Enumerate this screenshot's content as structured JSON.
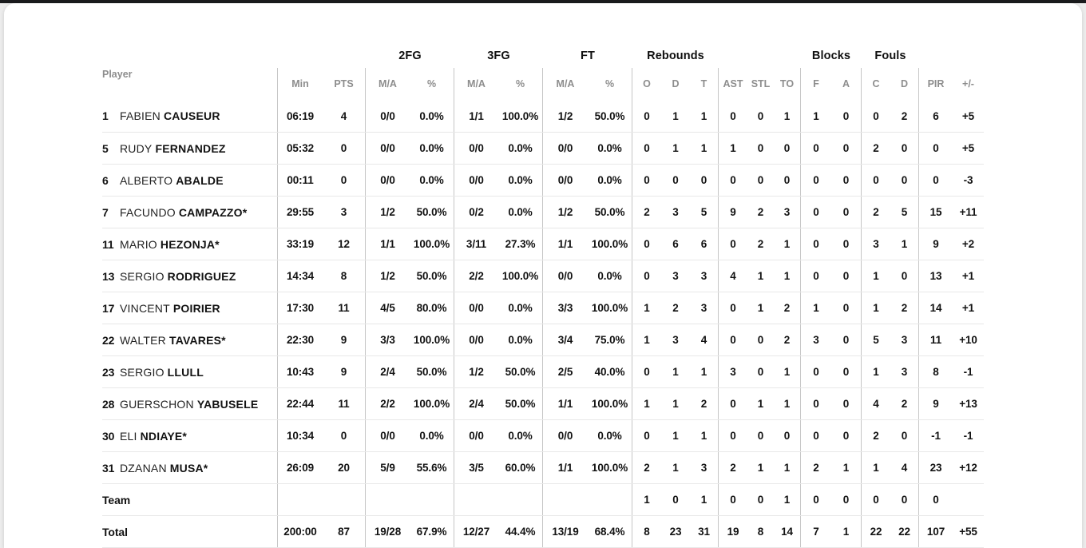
{
  "colors": {
    "page_bg": "#ececec",
    "top_strip": "#1a1b1d",
    "card_bg": "#ffffff",
    "vertical_divider": "#c6c6c6",
    "row_line": "#e8e8e8",
    "header_text": "#8d8d8d",
    "text": "#121212"
  },
  "table": {
    "player_header": "Player",
    "groups": [
      {
        "label": "2FG"
      },
      {
        "label": "3FG"
      },
      {
        "label": "FT"
      },
      {
        "label": "Rebounds"
      },
      {
        "label": "Blocks"
      },
      {
        "label": "Fouls"
      }
    ],
    "columns": [
      "Min",
      "PTS",
      "M/A",
      "%",
      "M/A",
      "%",
      "M/A",
      "%",
      "O",
      "D",
      "T",
      "AST",
      "STL",
      "TO",
      "F",
      "A",
      "C",
      "D",
      "PIR",
      "+/-"
    ],
    "rows": [
      {
        "num": "1",
        "first": "FABIEN",
        "last": "CAUSEUR",
        "cells": [
          "06:19",
          "4",
          "0/0",
          "0.0%",
          "1/1",
          "100.0%",
          "1/2",
          "50.0%",
          "0",
          "1",
          "1",
          "0",
          "0",
          "1",
          "1",
          "0",
          "0",
          "2",
          "6",
          "+5"
        ]
      },
      {
        "num": "5",
        "first": "RUDY",
        "last": "FERNANDEZ",
        "cells": [
          "05:32",
          "0",
          "0/0",
          "0.0%",
          "0/0",
          "0.0%",
          "0/0",
          "0.0%",
          "0",
          "1",
          "1",
          "1",
          "0",
          "0",
          "0",
          "0",
          "2",
          "0",
          "0",
          "+5"
        ]
      },
      {
        "num": "6",
        "first": "ALBERTO",
        "last": "ABALDE",
        "cells": [
          "00:11",
          "0",
          "0/0",
          "0.0%",
          "0/0",
          "0.0%",
          "0/0",
          "0.0%",
          "0",
          "0",
          "0",
          "0",
          "0",
          "0",
          "0",
          "0",
          "0",
          "0",
          "0",
          "-3"
        ]
      },
      {
        "num": "7",
        "first": "FACUNDO",
        "last": "CAMPAZZO*",
        "cells": [
          "29:55",
          "3",
          "1/2",
          "50.0%",
          "0/2",
          "0.0%",
          "1/2",
          "50.0%",
          "2",
          "3",
          "5",
          "9",
          "2",
          "3",
          "0",
          "0",
          "2",
          "5",
          "15",
          "+11"
        ]
      },
      {
        "num": "11",
        "first": "MARIO",
        "last": "HEZONJA*",
        "cells": [
          "33:19",
          "12",
          "1/1",
          "100.0%",
          "3/11",
          "27.3%",
          "1/1",
          "100.0%",
          "0",
          "6",
          "6",
          "0",
          "2",
          "1",
          "0",
          "0",
          "3",
          "1",
          "9",
          "+2"
        ]
      },
      {
        "num": "13",
        "first": "SERGIO",
        "last": "RODRIGUEZ",
        "cells": [
          "14:34",
          "8",
          "1/2",
          "50.0%",
          "2/2",
          "100.0%",
          "0/0",
          "0.0%",
          "0",
          "3",
          "3",
          "4",
          "1",
          "1",
          "0",
          "0",
          "1",
          "0",
          "13",
          "+1"
        ]
      },
      {
        "num": "17",
        "first": "VINCENT",
        "last": "POIRIER",
        "cells": [
          "17:30",
          "11",
          "4/5",
          "80.0%",
          "0/0",
          "0.0%",
          "3/3",
          "100.0%",
          "1",
          "2",
          "3",
          "0",
          "1",
          "2",
          "1",
          "0",
          "1",
          "2",
          "14",
          "+1"
        ]
      },
      {
        "num": "22",
        "first": "WALTER",
        "last": "TAVARES*",
        "cells": [
          "22:30",
          "9",
          "3/3",
          "100.0%",
          "0/0",
          "0.0%",
          "3/4",
          "75.0%",
          "1",
          "3",
          "4",
          "0",
          "0",
          "2",
          "3",
          "0",
          "5",
          "3",
          "11",
          "+10"
        ]
      },
      {
        "num": "23",
        "first": "SERGIO",
        "last": "LLULL",
        "cells": [
          "10:43",
          "9",
          "2/4",
          "50.0%",
          "1/2",
          "50.0%",
          "2/5",
          "40.0%",
          "0",
          "1",
          "1",
          "3",
          "0",
          "1",
          "0",
          "0",
          "1",
          "3",
          "8",
          "-1"
        ]
      },
      {
        "num": "28",
        "first": "GUERSCHON",
        "last": "YABUSELE",
        "cells": [
          "22:44",
          "11",
          "2/2",
          "100.0%",
          "2/4",
          "50.0%",
          "1/1",
          "100.0%",
          "1",
          "1",
          "2",
          "0",
          "1",
          "1",
          "0",
          "0",
          "4",
          "2",
          "9",
          "+13"
        ]
      },
      {
        "num": "30",
        "first": "ELI",
        "last": "NDIAYE*",
        "cells": [
          "10:34",
          "0",
          "0/0",
          "0.0%",
          "0/0",
          "0.0%",
          "0/0",
          "0.0%",
          "0",
          "1",
          "1",
          "0",
          "0",
          "0",
          "0",
          "0",
          "2",
          "0",
          "-1",
          "-1"
        ]
      },
      {
        "num": "31",
        "first": "DZANAN",
        "last": "MUSA*",
        "cells": [
          "26:09",
          "20",
          "5/9",
          "55.6%",
          "3/5",
          "60.0%",
          "1/1",
          "100.0%",
          "2",
          "1",
          "3",
          "2",
          "1",
          "1",
          "2",
          "1",
          "1",
          "4",
          "23",
          "+12"
        ]
      }
    ],
    "team_row": {
      "label": "Team",
      "cells": [
        "",
        "",
        "",
        "",
        "",
        "",
        "",
        "",
        "1",
        "0",
        "1",
        "0",
        "0",
        "1",
        "0",
        "0",
        "0",
        "0",
        "0",
        ""
      ]
    },
    "total_row": {
      "label": "Total",
      "cells": [
        "200:00",
        "87",
        "19/28",
        "67.9%",
        "12/27",
        "44.4%",
        "13/19",
        "68.4%",
        "8",
        "23",
        "31",
        "19",
        "8",
        "14",
        "7",
        "1",
        "22",
        "22",
        "107",
        "+55"
      ]
    }
  }
}
